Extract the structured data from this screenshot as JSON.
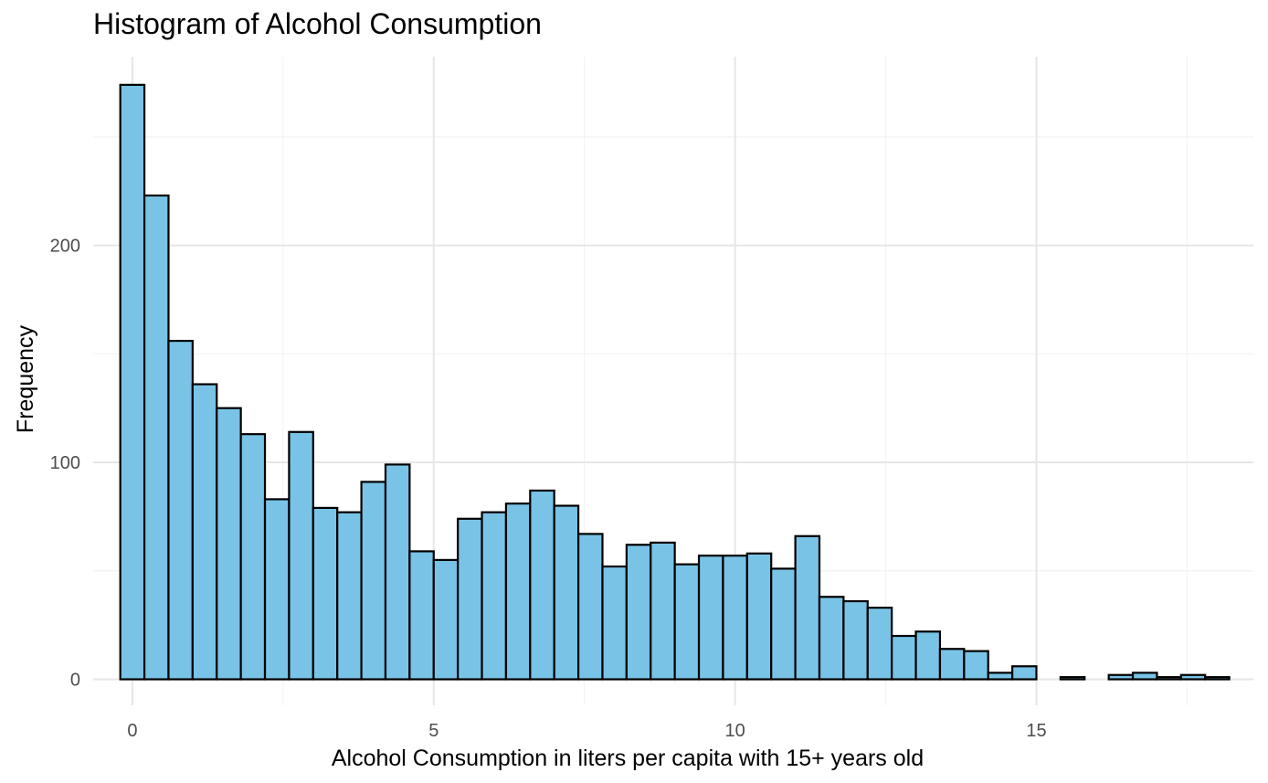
{
  "chart_data": {
    "type": "bar",
    "title": "Histogram of Alcohol Consumption",
    "xlabel": "Alcohol Consumption in liters per capita with 15+ years old",
    "ylabel": "Frequency",
    "xlim": [
      -0.65,
      18.6
    ],
    "ylim": [
      -12,
      287
    ],
    "bin_width": 0.4,
    "bin_start": -0.2,
    "x_ticks": [
      0,
      5,
      10,
      15
    ],
    "y_ticks": [
      0,
      100,
      200
    ],
    "grid": true,
    "colors": {
      "fill": "#79C3E6",
      "stroke": "#000000",
      "grid_major": "#E6E6E6",
      "grid_minor": "#F3F3F3",
      "text": "#4D4D4D"
    },
    "values": [
      274,
      223,
      156,
      136,
      125,
      113,
      83,
      114,
      79,
      77,
      91,
      99,
      59,
      55,
      74,
      77,
      81,
      87,
      80,
      67,
      52,
      62,
      63,
      53,
      57,
      57,
      58,
      51,
      66,
      38,
      36,
      33,
      20,
      22,
      14,
      13,
      3,
      6,
      0,
      1,
      0,
      2,
      3,
      1,
      2,
      1
    ]
  }
}
